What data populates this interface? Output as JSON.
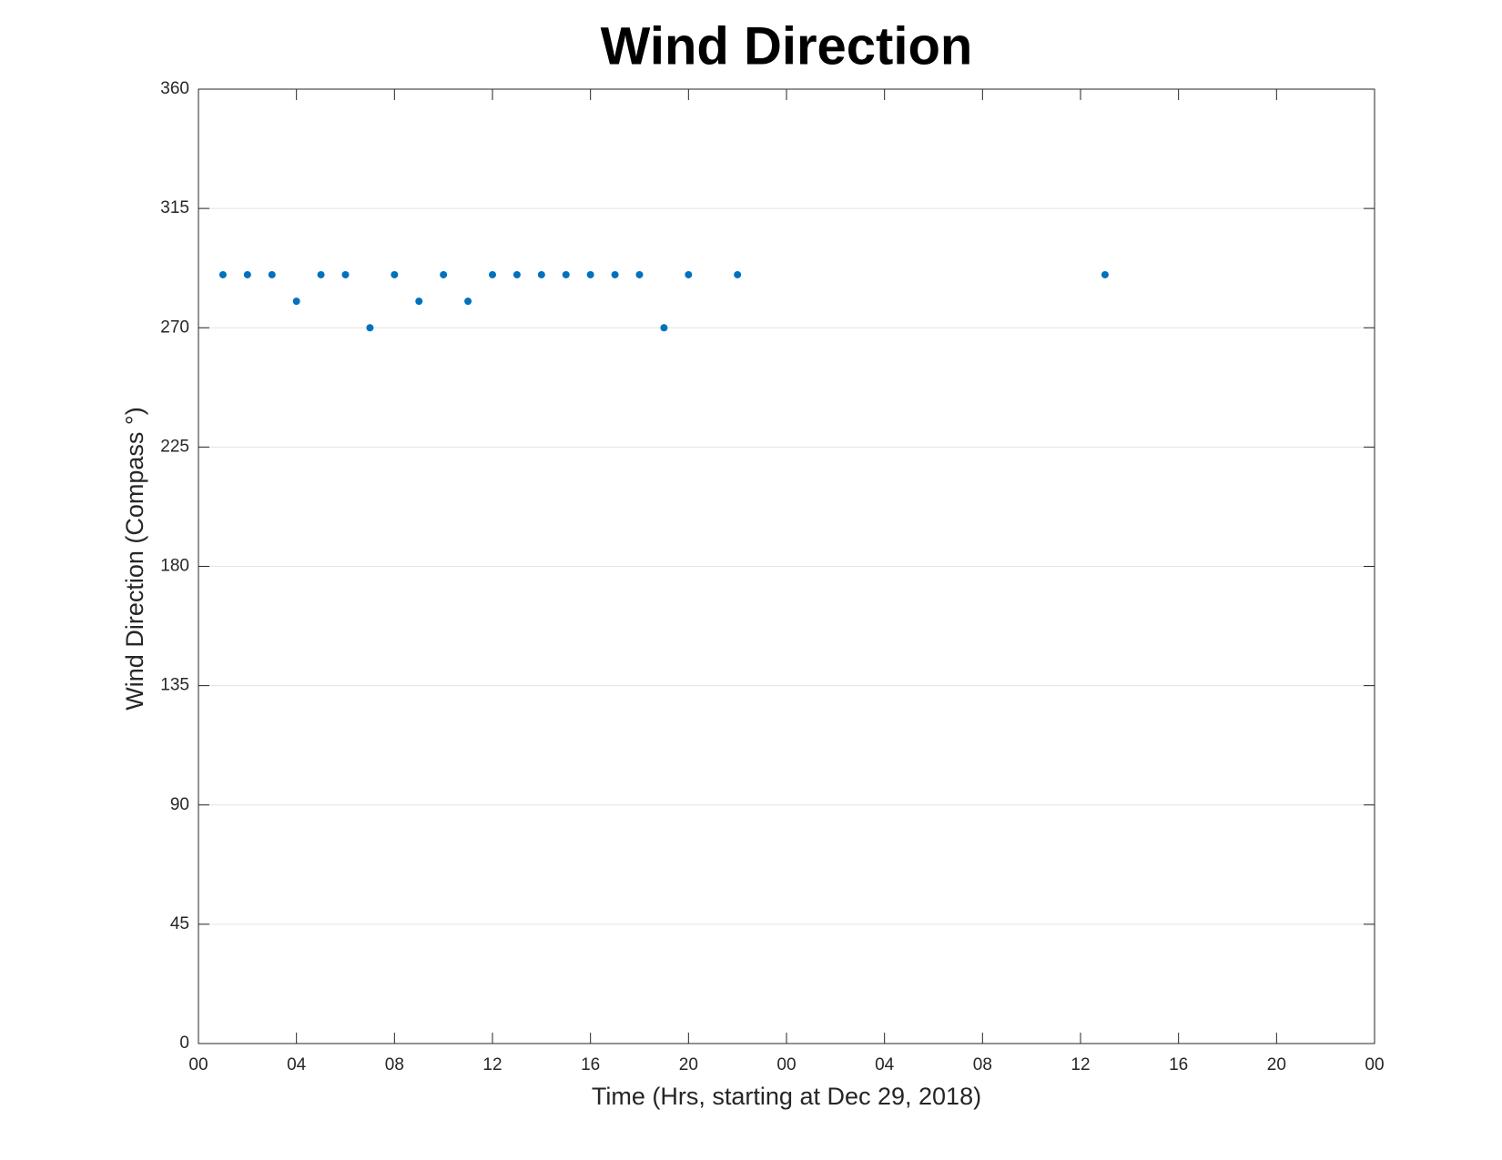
{
  "chart_data": {
    "type": "scatter",
    "title": "Wind Direction",
    "xlabel": "Time (Hrs, starting at Dec 29, 2018)",
    "ylabel": "Wind Direction (Compass °)",
    "x": [
      1,
      2,
      3,
      4,
      5,
      6,
      7,
      8,
      9,
      10,
      11,
      12,
      13,
      14,
      15,
      16,
      17,
      18,
      19,
      20,
      22,
      37
    ],
    "values": [
      290,
      290,
      290,
      280,
      290,
      290,
      270,
      290,
      280,
      290,
      280,
      290,
      290,
      290,
      290,
      290,
      290,
      290,
      270,
      290,
      290,
      290
    ],
    "color": "#0072bd",
    "xlim": [
      0,
      48
    ],
    "xticks": [
      {
        "value": 0,
        "label": "00"
      },
      {
        "value": 4,
        "label": "04"
      },
      {
        "value": 8,
        "label": "08"
      },
      12,
      16,
      20,
      {
        "value": 24,
        "label": "00"
      },
      {
        "value": 28,
        "label": "04"
      },
      {
        "value": 32,
        "label": "08"
      },
      {
        "value": 36,
        "label": "12"
      },
      {
        "value": 40,
        "label": "16"
      },
      {
        "value": 44,
        "label": "20"
      },
      {
        "value": 48,
        "label": "00"
      }
    ],
    "ylim": [
      0,
      360
    ],
    "yticks": [
      0,
      45,
      90,
      135,
      180,
      225,
      270,
      315,
      360
    ],
    "grid": true
  }
}
